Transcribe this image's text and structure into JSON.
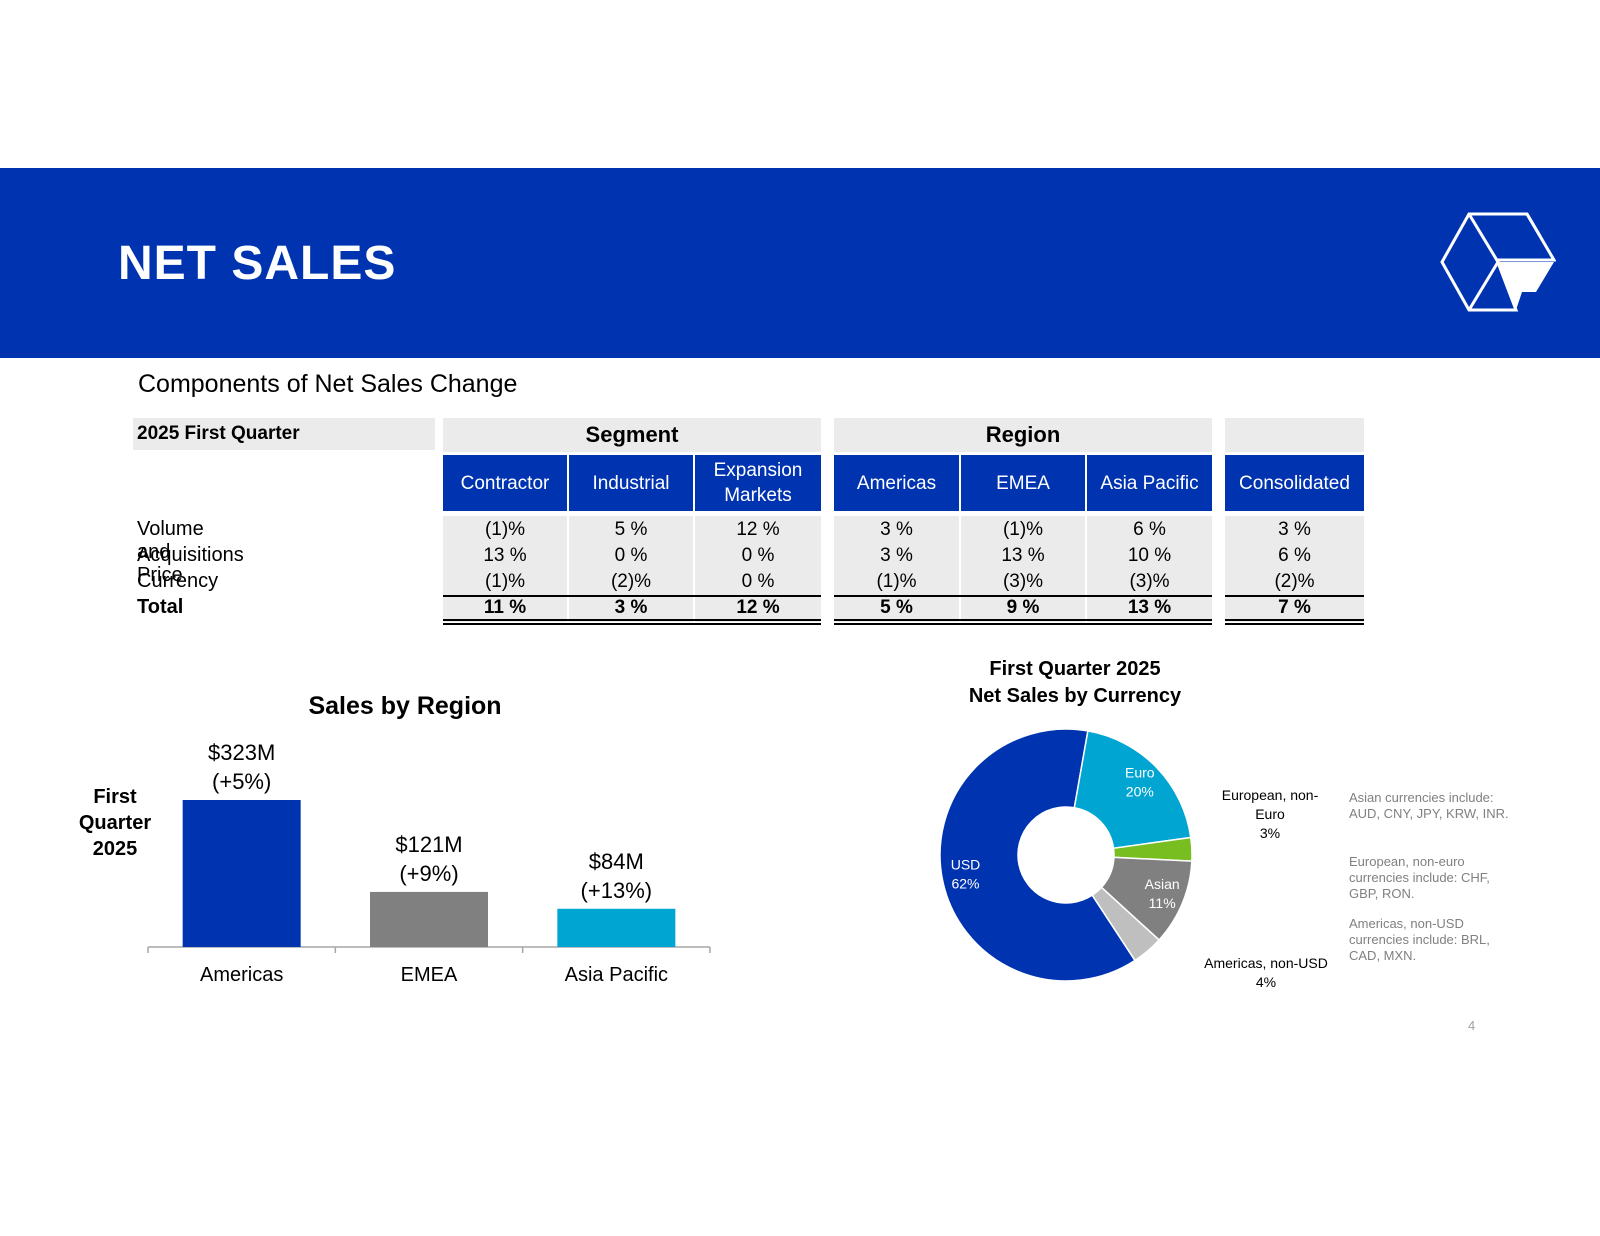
{
  "header": {
    "title": "NET SALES",
    "logo": "graco-g-logo"
  },
  "subtitle": "Components of Net Sales Change",
  "table": {
    "period_label": "2025 First Quarter",
    "groups": {
      "segment": "Segment",
      "region": "Region"
    },
    "columns": [
      "Contractor",
      "Industrial",
      "Expansion Markets",
      "Americas",
      "EMEA",
      "Asia Pacific",
      "Consolidated"
    ],
    "rows": [
      {
        "label": "Volume and Price",
        "values": [
          "(1)%",
          "5 %",
          "12 %",
          "3 %",
          "(1)%",
          "6 %",
          "3 %"
        ]
      },
      {
        "label": "Acquisitions",
        "values": [
          "13 %",
          "0 %",
          "0 %",
          "3 %",
          "13 %",
          "10 %",
          "6 %"
        ]
      },
      {
        "label": "Currency",
        "values": [
          "(1)%",
          "(2)%",
          "0 %",
          "(1)%",
          "(3)%",
          "(3)%",
          "(2)%"
        ]
      },
      {
        "label": "Total",
        "values": [
          "11 %",
          "3 %",
          "12 %",
          "5 %",
          "9 %",
          "13 %",
          "7 %"
        ]
      }
    ]
  },
  "bar_section": {
    "period_line1": "First",
    "period_line2": "Quarter",
    "period_line3": "2025"
  },
  "chart_data": [
    {
      "type": "bar",
      "title": "Sales by Region",
      "categories": [
        "Americas",
        "EMEA",
        "Asia Pacific"
      ],
      "values": [
        323,
        121,
        84
      ],
      "unit": "$M",
      "data_labels": [
        [
          "$323M",
          "(+5%)"
        ],
        [
          "$121M",
          "(+9%)"
        ],
        [
          "$84M",
          "(+13%)"
        ]
      ],
      "colors": [
        "#0033B0",
        "#808080",
        "#00A5D2"
      ],
      "ylim": [
        0,
        323
      ]
    },
    {
      "type": "pie",
      "title_line1": "First Quarter 2025",
      "title_line2": "Net Sales by Currency",
      "slices": [
        {
          "label": "USD",
          "pct_label": "62%",
          "value": 62,
          "color": "#0033B0"
        },
        {
          "label": "Euro",
          "pct_label": "20%",
          "value": 20,
          "color": "#00A5D2"
        },
        {
          "label": "European, non-Euro",
          "pct_label": "3%",
          "value": 3,
          "color": "#78BE20"
        },
        {
          "label": "Asian",
          "pct_label": "11%",
          "value": 11,
          "color": "#808080"
        },
        {
          "label": "Americas, non-USD",
          "pct_label": "4%",
          "value": 4,
          "color": "#BFBFBF"
        }
      ]
    }
  ],
  "notes": [
    "Asian currencies include: AUD, CNY, JPY, KRW, INR.",
    "European, non-euro currencies include: CHF, GBP, RON.",
    "Americas, non-USD currencies include: BRL, CAD, MXN."
  ],
  "page_number": "4"
}
